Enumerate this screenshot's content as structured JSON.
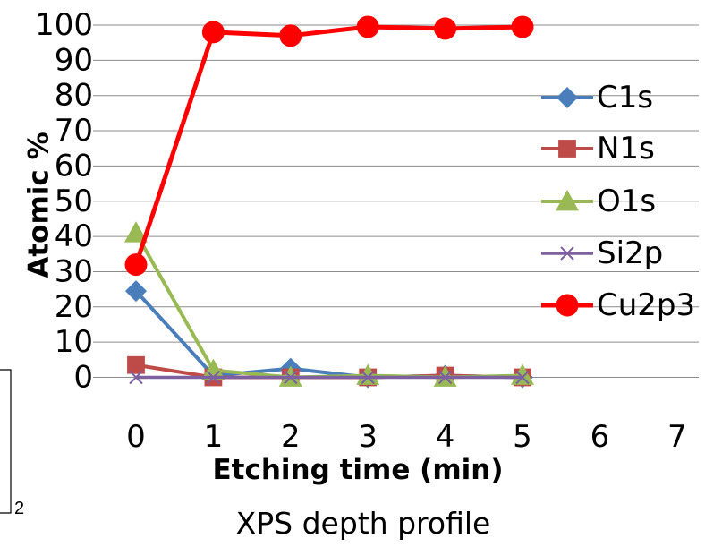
{
  "chart_data": {
    "type": "line",
    "title": "",
    "caption": "XPS depth profile",
    "xlabel": "Etching time (min)",
    "ylabel": "Atomic %",
    "xlim": [
      0,
      7
    ],
    "ylim": [
      0,
      100
    ],
    "x_ticks": [
      "0",
      "1",
      "2",
      "3",
      "4",
      "5",
      "6",
      "7"
    ],
    "y_ticks": [
      "0",
      "10",
      "20",
      "30",
      "40",
      "50",
      "60",
      "70",
      "80",
      "90",
      "100"
    ],
    "grid": true,
    "legend_position": "right",
    "x": [
      0,
      1,
      2,
      3,
      4,
      5
    ],
    "series": [
      {
        "name": "C1s",
        "color": "#4a7ebb",
        "marker": "diamond",
        "values": [
          24.5,
          0.5,
          2.5,
          0,
          0.5,
          0
        ]
      },
      {
        "name": "N1s",
        "color": "#be4b48",
        "marker": "square",
        "values": [
          3.5,
          0,
          0,
          0,
          0.5,
          0
        ]
      },
      {
        "name": "O1s",
        "color": "#98b954",
        "marker": "triangle",
        "values": [
          41,
          2,
          0,
          0.5,
          0,
          0.5
        ]
      },
      {
        "name": "Si2p",
        "color": "#7d60a0",
        "marker": "x",
        "values": [
          0,
          0,
          0,
          0,
          0,
          0
        ]
      },
      {
        "name": "Cu2p3",
        "color": "#ff0000",
        "marker": "circle",
        "values": [
          32,
          98,
          97,
          99.5,
          99,
          99.5
        ]
      }
    ]
  },
  "fragment_text": "2"
}
